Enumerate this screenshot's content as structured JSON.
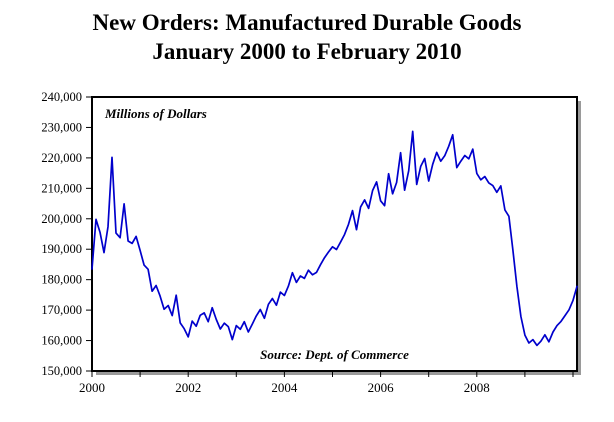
{
  "title": {
    "line1": "New Orders: Manufactured Durable Goods",
    "line2": "January 2000 to February 2010"
  },
  "annotations": {
    "units": "Millions of Dollars",
    "source": "Source: Dept. of Commerce"
  },
  "chart_data": {
    "type": "line",
    "title": "New Orders: Manufactured Durable Goods January 2000 to February 2010",
    "series_name": "New Orders",
    "x_frequency": "monthly",
    "x_start": "2000-01",
    "x_end": "2010-02",
    "xlabel": "",
    "ylabel": "Millions of Dollars",
    "ylim": [
      150000,
      240000
    ],
    "y_tick_step": 10000,
    "y_tick_labels": [
      "150,000",
      "160,000",
      "170,000",
      "180,000",
      "190,000",
      "200,000",
      "210,000",
      "220,000",
      "230,000",
      "240,000"
    ],
    "x_tick_years": [
      2000,
      2001,
      2002,
      2003,
      2004,
      2005,
      2006,
      2007,
      2008,
      2009,
      2010
    ],
    "x_label_years": [
      2000,
      2002,
      2004,
      2006,
      2008
    ],
    "line_color": "#0000CC",
    "background": "#FFFFFF",
    "grid": false,
    "legend": "none",
    "values": [
      183500,
      199800,
      195600,
      188900,
      197400,
      220200,
      195300,
      193800,
      204900,
      192700,
      191900,
      194200,
      189600,
      184800,
      183400,
      176200,
      178100,
      174600,
      170300,
      171500,
      168200,
      174900,
      165800,
      163900,
      161200,
      166400,
      164700,
      168300,
      169100,
      166200,
      170800,
      166900,
      163800,
      165700,
      164600,
      160300,
      164900,
      163700,
      166200,
      162800,
      165400,
      168100,
      170200,
      167300,
      171900,
      173800,
      171600,
      175900,
      174800,
      177900,
      182300,
      179100,
      181200,
      180400,
      183100,
      181600,
      182400,
      184900,
      187200,
      189100,
      190800,
      189900,
      192300,
      194800,
      198200,
      202700,
      196400,
      203900,
      206200,
      203400,
      209300,
      212100,
      205900,
      204300,
      214800,
      208200,
      211900,
      221700,
      209400,
      215800,
      228700,
      211300,
      217200,
      219800,
      212400,
      217900,
      221800,
      218900,
      220700,
      223800,
      227600,
      216800,
      218900,
      220800,
      219700,
      222900,
      214900,
      212800,
      213900,
      211800,
      210900,
      208700,
      210800,
      202900,
      200800,
      189700,
      177800,
      167900,
      161800,
      159200,
      160300,
      158400,
      159800,
      161900,
      159600,
      162800,
      164900,
      166300,
      168200,
      170100,
      173200,
      177800
    ]
  }
}
